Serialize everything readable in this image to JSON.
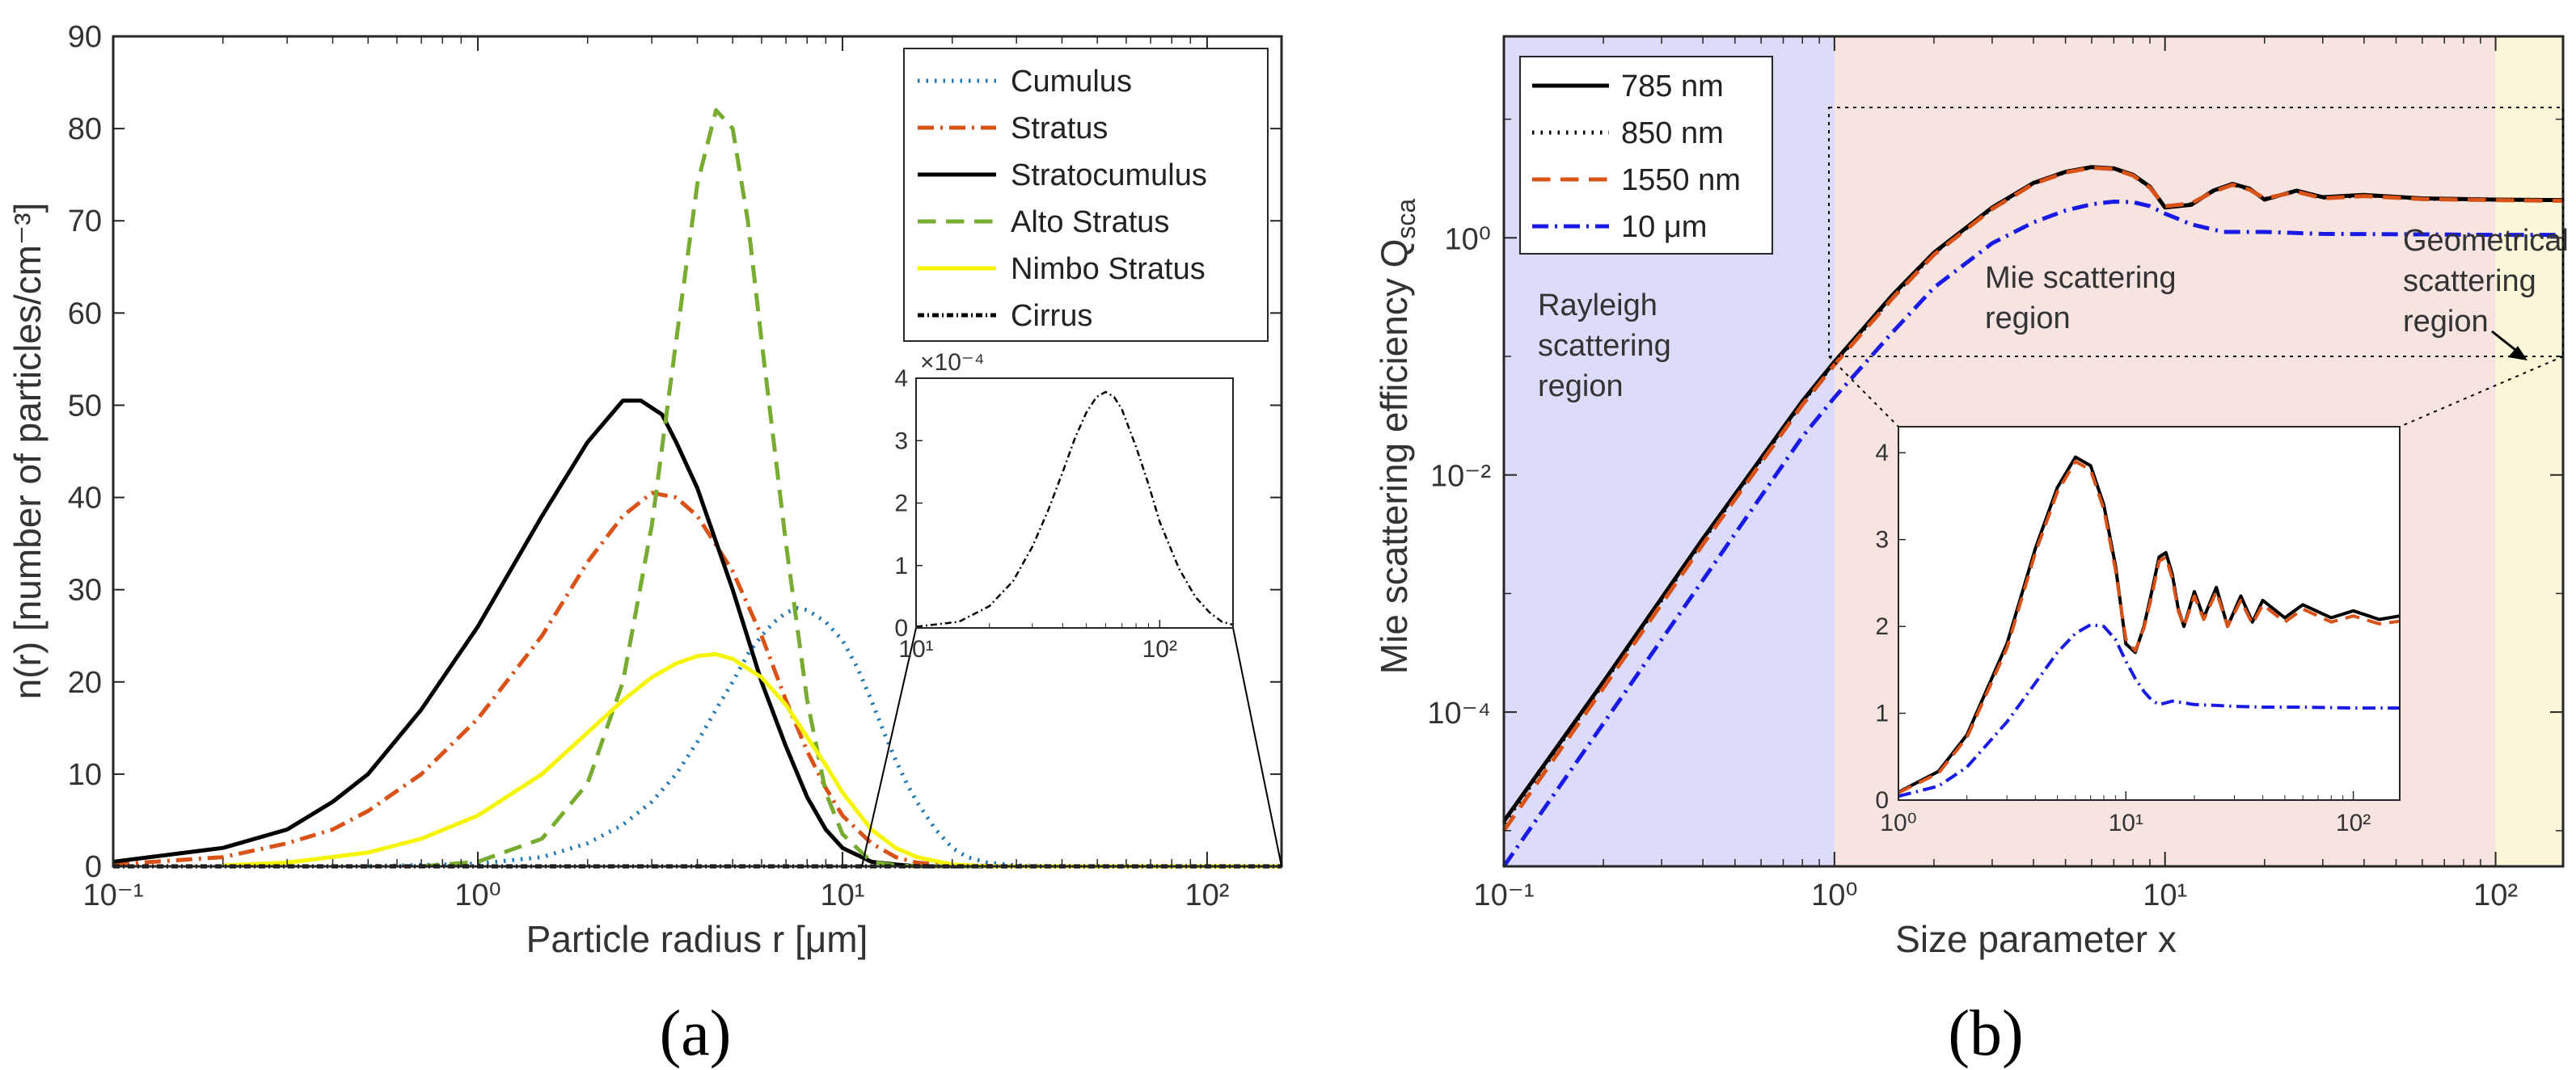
{
  "figure": {
    "panel_a_label": "(a)",
    "panel_b_label": "(b)"
  },
  "chart_data": [
    {
      "id": "a",
      "type": "line",
      "title": "",
      "xlabel": "Particle radius r [μm]",
      "ylabel": "n(r) [number of particles/cm⁻³]",
      "xscale": "log",
      "xlim": [
        0.1,
        160
      ],
      "ylim": [
        0,
        90
      ],
      "xticks": [
        {
          "value": 0.1,
          "label": "10⁻¹"
        },
        {
          "value": 1,
          "label": "10⁰"
        },
        {
          "value": 10,
          "label": "10¹"
        },
        {
          "value": 100,
          "label": "10²"
        }
      ],
      "yticks": [
        0,
        10,
        20,
        30,
        40,
        50,
        60,
        70,
        80,
        90
      ],
      "legend_position": "top-right",
      "series": [
        {
          "name": "Cumulus",
          "color": "#1f77b4",
          "dash": "dotted",
          "x": [
            0.5,
            1,
            1.5,
            2,
            2.5,
            3,
            3.5,
            4,
            4.5,
            5,
            5.5,
            6,
            6.5,
            7,
            7.5,
            8,
            9,
            10,
            11,
            12,
            13,
            14,
            15,
            16,
            18,
            20,
            22,
            25,
            30,
            40,
            60,
            100,
            160
          ],
          "y": [
            0,
            0.3,
            1,
            2.5,
            4.5,
            7,
            10,
            13.5,
            17,
            20,
            23,
            25,
            26.5,
            27.5,
            28,
            27.8,
            26.5,
            24.5,
            21.5,
            18,
            14.5,
            11.5,
            9,
            7,
            4,
            2,
            1,
            0.4,
            0.1,
            0,
            0,
            0,
            0
          ]
        },
        {
          "name": "Stratus",
          "color": "#d95319",
          "dash": "dashdot",
          "x": [
            0.1,
            0.2,
            0.3,
            0.4,
            0.5,
            0.7,
            1,
            1.5,
            2,
            2.5,
            3,
            3.5,
            4,
            5,
            6,
            7,
            8,
            9,
            10,
            12,
            14,
            16,
            20,
            30,
            60,
            160
          ],
          "y": [
            0.2,
            1,
            2.5,
            4,
            6,
            10,
            16,
            25,
            33,
            38,
            40.5,
            40,
            38,
            32,
            25,
            18,
            12.5,
            8.5,
            5.5,
            2.5,
            1,
            0.4,
            0.1,
            0,
            0,
            0
          ]
        },
        {
          "name": "Stratocumulus",
          "color": "#000000",
          "dash": "solid",
          "x": [
            0.1,
            0.2,
            0.3,
            0.4,
            0.5,
            0.7,
            1,
            1.5,
            2,
            2.5,
            2.8,
            3.2,
            3.5,
            4,
            5,
            6,
            7,
            8,
            9,
            10,
            12,
            14,
            16,
            20,
            30,
            60,
            160
          ],
          "y": [
            0.5,
            2,
            4,
            7,
            10,
            17,
            26,
            38,
            46,
            50.5,
            50.5,
            49,
            46,
            41,
            30,
            20,
            13,
            7.5,
            4,
            2,
            0.5,
            0.2,
            0,
            0,
            0,
            0,
            0
          ]
        },
        {
          "name": "Alto Stratus",
          "color": "#77ac30",
          "dash": "dashed",
          "x": [
            0.7,
            1,
            1.5,
            2,
            2.5,
            3,
            3.5,
            4,
            4.5,
            5,
            5.5,
            6,
            7,
            8,
            9,
            10,
            12,
            14,
            16,
            20,
            30,
            60,
            160
          ],
          "y": [
            0,
            0.5,
            3,
            9,
            20,
            37,
            57,
            74,
            82,
            80,
            70,
            57,
            35,
            18,
            8,
            3.5,
            0.5,
            0.1,
            0,
            0,
            0,
            0,
            0
          ]
        },
        {
          "name": "Nimbo Stratus",
          "color": "#f5f500",
          "dash": "solid",
          "x": [
            0.2,
            0.3,
            0.5,
            0.7,
            1,
            1.5,
            2,
            2.5,
            3,
            3.5,
            4,
            4.5,
            5,
            6,
            7,
            8,
            9,
            10,
            12,
            14,
            16,
            20,
            25,
            30,
            60,
            160
          ],
          "y": [
            0.1,
            0.4,
            1.5,
            3,
            5.5,
            10,
            14.5,
            18,
            20.5,
            22,
            22.8,
            23,
            22.5,
            20.5,
            17.5,
            14,
            11,
            8,
            4,
            2,
            1,
            0.2,
            0,
            0,
            0,
            0
          ]
        },
        {
          "name": "Cirrus",
          "color": "#000000",
          "dash": "dashdotfine",
          "x": [
            0.1,
            160
          ],
          "y": [
            0,
            0
          ]
        }
      ],
      "inset": {
        "y_scale_label": "×10⁻⁴",
        "xscale": "log",
        "xlim": [
          10,
          200
        ],
        "ylim": [
          0,
          4
        ],
        "xticks": [
          {
            "value": 10,
            "label": "10¹"
          },
          {
            "value": 100,
            "label": "10²"
          }
        ],
        "yticks": [
          0,
          1,
          2,
          3,
          4
        ],
        "series": [
          {
            "name": "Cirrus",
            "color": "#000000",
            "dash": "dashdotfine",
            "x": [
              10,
              15,
              20,
              25,
              30,
              35,
              40,
              45,
              50,
              55,
              60,
              65,
              70,
              80,
              90,
              100,
              120,
              140,
              160,
              180,
              200
            ],
            "y": [
              0.02,
              0.1,
              0.35,
              0.75,
              1.3,
              1.9,
              2.5,
              3.05,
              3.45,
              3.7,
              3.78,
              3.7,
              3.5,
              2.9,
              2.3,
              1.7,
              0.95,
              0.5,
              0.25,
              0.1,
              0.05
            ]
          }
        ]
      }
    },
    {
      "id": "b",
      "type": "line",
      "title": "",
      "xlabel": "Size parameter x",
      "ylabel": "Mie scattering efficiency Q",
      "ylabel_sub": "sca",
      "xscale": "log",
      "yscale": "log",
      "xlim": [
        0.1,
        160
      ],
      "ylim": [
        5e-06,
        50
      ],
      "xticks": [
        {
          "value": 0.1,
          "label": "10⁻¹"
        },
        {
          "value": 1,
          "label": "10⁰"
        },
        {
          "value": 10,
          "label": "10¹"
        },
        {
          "value": 100,
          "label": "10²"
        }
      ],
      "yticks": [
        {
          "value": 0.0001,
          "label": "10⁻⁴"
        },
        {
          "value": 0.01,
          "label": "10⁻²"
        },
        {
          "value": 1,
          "label": "10⁰"
        }
      ],
      "legend_position": "top-left",
      "regions": [
        {
          "name": "Rayleigh scattering region",
          "lines": [
            "Rayleigh",
            "scattering",
            "region"
          ],
          "from": 0.1,
          "to": 1,
          "color": "#dcdcfa"
        },
        {
          "name": "Mie scattering region",
          "lines": [
            "Mie scattering",
            "region"
          ],
          "from": 1,
          "to": 100,
          "color": "#f7e4e0"
        },
        {
          "name": "Geometrical scattering region",
          "lines": [
            "Geometrical",
            "scattering",
            "region"
          ],
          "from": 100,
          "to": 160,
          "color": "#fbf7d8"
        }
      ],
      "series": [
        {
          "name": "785 nm",
          "color": "#000000",
          "dash": "solid",
          "x": [
            0.1,
            0.2,
            0.4,
            0.8,
            1,
            1.5,
            2,
            3,
            4,
            5,
            6,
            7,
            8,
            9,
            10,
            12,
            14,
            16,
            18,
            20,
            25,
            30,
            40,
            60,
            100,
            160
          ],
          "y": [
            1.2e-05,
            0.00018,
            0.0029,
            0.042,
            0.09,
            0.33,
            0.75,
            1.8,
            2.9,
            3.6,
            3.95,
            3.85,
            3.4,
            2.7,
            1.8,
            1.9,
            2.5,
            2.85,
            2.6,
            2.1,
            2.5,
            2.2,
            2.3,
            2.15,
            2.1,
            2.08
          ]
        },
        {
          "name": "850 nm",
          "color": "#000000",
          "dash": "dotted",
          "x": [
            0.1,
            0.2,
            0.4,
            0.8,
            1,
            1.5,
            2,
            3,
            4,
            5,
            6,
            7,
            8,
            9,
            10,
            12,
            14,
            16,
            18,
            20,
            25,
            30,
            40,
            60,
            100,
            160
          ],
          "y": [
            1.15e-05,
            0.000175,
            0.0028,
            0.041,
            0.088,
            0.32,
            0.74,
            1.78,
            2.88,
            3.58,
            3.93,
            3.83,
            3.38,
            2.68,
            1.82,
            1.92,
            2.48,
            2.82,
            2.58,
            2.12,
            2.48,
            2.18,
            2.28,
            2.14,
            2.1,
            2.08
          ]
        },
        {
          "name": "1550 nm",
          "color": "#d95319",
          "dash": "dashed",
          "x": [
            0.1,
            0.2,
            0.4,
            0.8,
            1,
            1.5,
            2,
            3,
            4,
            5,
            6,
            7,
            8,
            9,
            10,
            12,
            14,
            16,
            18,
            20,
            25,
            30,
            40,
            60,
            100,
            160
          ],
          "y": [
            1e-05,
            0.00016,
            0.0026,
            0.039,
            0.085,
            0.31,
            0.72,
            1.75,
            2.85,
            3.55,
            3.9,
            3.8,
            3.35,
            2.65,
            1.85,
            1.95,
            2.45,
            2.8,
            2.55,
            2.15,
            2.45,
            2.15,
            2.25,
            2.12,
            2.08,
            2.05
          ]
        },
        {
          "name": "10 μm",
          "color": "#1a1ae6",
          "dash": "dashdot",
          "x": [
            0.1,
            0.2,
            0.4,
            0.8,
            1,
            1.5,
            2,
            3,
            4,
            5,
            6,
            7,
            8,
            9,
            10,
            12,
            15,
            20,
            30,
            60,
            100,
            160
          ],
          "y": [
            5e-06,
            8e-05,
            0.0013,
            0.021,
            0.045,
            0.16,
            0.38,
            0.9,
            1.35,
            1.7,
            1.92,
            2.02,
            2.0,
            1.85,
            1.6,
            1.3,
            1.12,
            1.12,
            1.08,
            1.07,
            1.06,
            1.06
          ]
        }
      ],
      "inset": {
        "xscale": "log",
        "xlim": [
          1,
          160
        ],
        "ylim": [
          0,
          4.3
        ],
        "xticks": [
          {
            "value": 1,
            "label": "10⁰"
          },
          {
            "value": 10,
            "label": "10¹"
          },
          {
            "value": 100,
            "label": "10²"
          }
        ],
        "yticks": [
          0,
          1,
          2,
          3,
          4
        ],
        "series": [
          {
            "name": "785 nm",
            "color": "#000000",
            "dash": "solid",
            "x": [
              1,
              1.5,
              2,
              3,
              4,
              5,
              6,
              7,
              8,
              9,
              10,
              11,
              12,
              13,
              14,
              15,
              16,
              17,
              18,
              20,
              22,
              25,
              28,
              32,
              36,
              40,
              50,
              60,
              80,
              100,
              130,
              160
            ],
            "y": [
              0.09,
              0.33,
              0.75,
              1.8,
              2.9,
              3.6,
              3.95,
              3.85,
              3.4,
              2.7,
              1.8,
              1.7,
              2.0,
              2.4,
              2.8,
              2.85,
              2.6,
              2.2,
              2.0,
              2.4,
              2.1,
              2.45,
              2.0,
              2.35,
              2.05,
              2.3,
              2.1,
              2.25,
              2.1,
              2.18,
              2.08,
              2.12
            ]
          },
          {
            "name": "1550 nm",
            "color": "#d95319",
            "dash": "dashed",
            "x": [
              1,
              1.5,
              2,
              3,
              4,
              5,
              6,
              7,
              8,
              9,
              10,
              11,
              12,
              13,
              14,
              15,
              16,
              17,
              18,
              20,
              22,
              25,
              28,
              32,
              36,
              40,
              50,
              60,
              80,
              100,
              130,
              160
            ],
            "y": [
              0.085,
              0.31,
              0.72,
              1.75,
              2.85,
              3.55,
              3.9,
              3.8,
              3.35,
              2.65,
              1.85,
              1.72,
              1.98,
              2.35,
              2.75,
              2.8,
              2.55,
              2.18,
              2.0,
              2.35,
              2.08,
              2.4,
              2.0,
              2.3,
              2.03,
              2.25,
              2.05,
              2.2,
              2.05,
              2.12,
              2.03,
              2.06
            ]
          },
          {
            "name": "10 μm",
            "color": "#1a1ae6",
            "dash": "dashdot",
            "x": [
              1,
              1.5,
              2,
              3,
              4,
              5,
              6,
              7,
              8,
              9,
              10,
              11,
              12,
              13,
              14,
              15,
              16,
              18,
              20,
              25,
              30,
              40,
              60,
              100,
              160
            ],
            "y": [
              0.045,
              0.16,
              0.38,
              0.9,
              1.35,
              1.7,
              1.92,
              2.02,
              2.0,
              1.85,
              1.6,
              1.4,
              1.25,
              1.15,
              1.1,
              1.12,
              1.14,
              1.12,
              1.1,
              1.09,
              1.08,
              1.07,
              1.07,
              1.06,
              1.06
            ]
          }
        ]
      }
    }
  ]
}
